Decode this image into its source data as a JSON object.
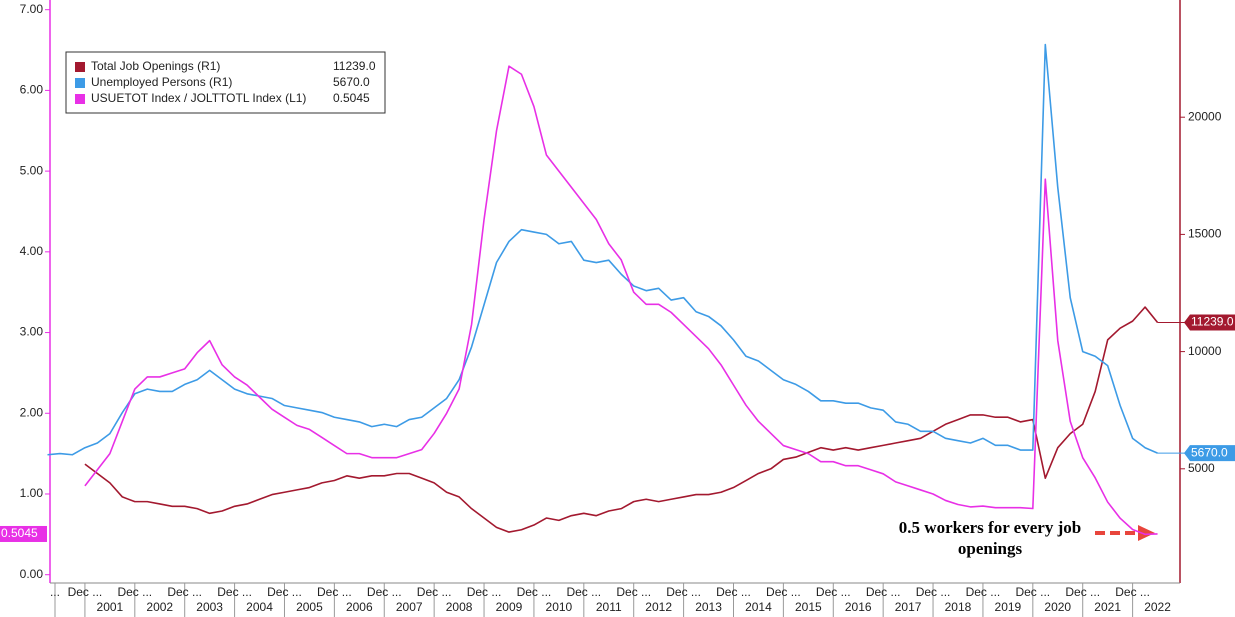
{
  "chart_data": {
    "type": "line",
    "legend": "top-left",
    "annotation": [
      "0.5 workers for every job",
      "openings"
    ],
    "xlim": [
      2000.3,
      2022.95
    ],
    "xticks": [
      {
        "value": 2000.4,
        "label": "..."
      },
      {
        "value": 2001,
        "label": "Dec ..."
      },
      {
        "value": 2002,
        "label": "Dec ..."
      },
      {
        "value": 2003,
        "label": "Dec ..."
      },
      {
        "value": 2004,
        "label": "Dec ..."
      },
      {
        "value": 2005,
        "label": "Dec ..."
      },
      {
        "value": 2006,
        "label": "Dec ..."
      },
      {
        "value": 2007,
        "label": "Dec ..."
      },
      {
        "value": 2008,
        "label": "Dec ..."
      },
      {
        "value": 2009,
        "label": "Dec ..."
      },
      {
        "value": 2010,
        "label": "Dec ..."
      },
      {
        "value": 2011,
        "label": "Dec ..."
      },
      {
        "value": 2012,
        "label": "Dec ..."
      },
      {
        "value": 2013,
        "label": "Dec ..."
      },
      {
        "value": 2014,
        "label": "Dec ..."
      },
      {
        "value": 2015,
        "label": "Dec ..."
      },
      {
        "value": 2016,
        "label": "Dec ..."
      },
      {
        "value": 2017,
        "label": "Dec ..."
      },
      {
        "value": 2018,
        "label": "Dec ..."
      },
      {
        "value": 2019,
        "label": "Dec ..."
      },
      {
        "value": 2020,
        "label": "Dec ..."
      },
      {
        "value": 2021,
        "label": "Dec ..."
      },
      {
        "value": 2022,
        "label": "Dec ..."
      }
    ],
    "year_labels": [
      {
        "value": 2001.5,
        "label": "2001"
      },
      {
        "value": 2002.5,
        "label": "2002"
      },
      {
        "value": 2003.5,
        "label": "2003"
      },
      {
        "value": 2004.5,
        "label": "2004"
      },
      {
        "value": 2005.5,
        "label": "2005"
      },
      {
        "value": 2006.5,
        "label": "2006"
      },
      {
        "value": 2007.5,
        "label": "2007"
      },
      {
        "value": 2008.5,
        "label": "2008"
      },
      {
        "value": 2009.5,
        "label": "2009"
      },
      {
        "value": 2010.5,
        "label": "2010"
      },
      {
        "value": 2011.5,
        "label": "2011"
      },
      {
        "value": 2012.5,
        "label": "2012"
      },
      {
        "value": 2013.5,
        "label": "2013"
      },
      {
        "value": 2014.5,
        "label": "2014"
      },
      {
        "value": 2015.5,
        "label": "2015"
      },
      {
        "value": 2016.5,
        "label": "2016"
      },
      {
        "value": 2017.5,
        "label": "2017"
      },
      {
        "value": 2018.5,
        "label": "2018"
      },
      {
        "value": 2019.5,
        "label": "2019"
      },
      {
        "value": 2020.5,
        "label": "2020"
      },
      {
        "value": 2021.5,
        "label": "2021"
      },
      {
        "value": 2022.5,
        "label": "2022"
      }
    ],
    "ylim": [
      -0.14,
      7.12
    ],
    "yticks": [
      {
        "value": 0,
        "label": "0.00"
      },
      {
        "value": 1,
        "label": "1.00"
      },
      {
        "value": 2,
        "label": "2.00"
      },
      {
        "value": 3,
        "label": "3.00"
      },
      {
        "value": 4,
        "label": "4.00"
      },
      {
        "value": 5,
        "label": "5.00"
      },
      {
        "value": 6,
        "label": "6.00"
      },
      {
        "value": 7,
        "label": "7.00"
      }
    ],
    "y2lim": [
      0,
      25000
    ],
    "y2ticks": [
      5000,
      10000,
      15000,
      20000
    ],
    "x": [
      2000.25,
      2000.5,
      2000.75,
      2001,
      2001.25,
      2001.5,
      2001.75,
      2002,
      2002.25,
      2002.5,
      2002.75,
      2003,
      2003.25,
      2003.5,
      2003.75,
      2004,
      2004.25,
      2004.5,
      2004.75,
      2005,
      2005.25,
      2005.5,
      2005.75,
      2006,
      2006.25,
      2006.5,
      2006.75,
      2007,
      2007.25,
      2007.5,
      2007.75,
      2008,
      2008.25,
      2008.5,
      2008.75,
      2009,
      2009.25,
      2009.5,
      2009.75,
      2010,
      2010.25,
      2010.5,
      2010.75,
      2011,
      2011.25,
      2011.5,
      2011.75,
      2012,
      2012.25,
      2012.5,
      2012.75,
      2013,
      2013.25,
      2013.5,
      2013.75,
      2014,
      2014.25,
      2014.5,
      2014.75,
      2015,
      2015.25,
      2015.5,
      2015.75,
      2016,
      2016.25,
      2016.5,
      2016.75,
      2017,
      2017.25,
      2017.5,
      2017.75,
      2018,
      2018.25,
      2018.5,
      2018.75,
      2019,
      2019.25,
      2019.5,
      2019.75,
      2020,
      2020.25,
      2020.5,
      2020.75,
      2021,
      2021.25,
      2021.5,
      2021.75,
      2022,
      2022.25,
      2022.5
    ],
    "series": [
      {
        "name": "Total Job Openings (R1)",
        "color": "#a3192f",
        "axis": "y2",
        "last_label": "11239.0",
        "values": [
          null,
          null,
          null,
          5200,
          4800,
          4400,
          3800,
          3600,
          3600,
          3500,
          3400,
          3400,
          3300,
          3100,
          3200,
          3400,
          3500,
          3700,
          3900,
          4000,
          4100,
          4200,
          4400,
          4500,
          4700,
          4600,
          4700,
          4700,
          4800,
          4800,
          4600,
          4400,
          4000,
          3800,
          3300,
          2900,
          2500,
          2300,
          2400,
          2600,
          2900,
          2800,
          3000,
          3100,
          3000,
          3200,
          3300,
          3600,
          3700,
          3600,
          3700,
          3800,
          3900,
          3900,
          4000,
          4200,
          4500,
          4800,
          5000,
          5400,
          5500,
          5700,
          5900,
          5800,
          5900,
          5800,
          5900,
          6000,
          6100,
          6200,
          6300,
          6600,
          6900,
          7100,
          7300,
          7300,
          7200,
          7200,
          7000,
          7100,
          4600,
          5900,
          6500,
          6900,
          8300,
          10500,
          11000,
          11300,
          11900,
          11239
        ]
      },
      {
        "name": "Unemployed Persons (R1)",
        "color": "#3d9be6",
        "axis": "y2",
        "last_label": "5670.0",
        "values": [
          5600,
          5650,
          5600,
          5900,
          6100,
          6500,
          7400,
          8200,
          8400,
          8300,
          8300,
          8600,
          8800,
          9200,
          8800,
          8400,
          8200,
          8100,
          8000,
          7700,
          7600,
          7500,
          7400,
          7200,
          7100,
          7000,
          6800,
          6900,
          6800,
          7100,
          7200,
          7600,
          8000,
          8800,
          10200,
          12000,
          13800,
          14700,
          15200,
          15100,
          15000,
          14600,
          14700,
          13900,
          13800,
          13900,
          13300,
          12800,
          12600,
          12700,
          12200,
          12300,
          11700,
          11500,
          11100,
          10500,
          9800,
          9600,
          9200,
          8800,
          8600,
          8300,
          7900,
          7900,
          7800,
          7800,
          7600,
          7500,
          7000,
          6900,
          6600,
          6600,
          6300,
          6200,
          6100,
          6300,
          6000,
          6000,
          5800,
          5800,
          23100,
          17000,
          12300,
          10000,
          9800,
          9400,
          7700,
          6300,
          5900,
          5670
        ]
      },
      {
        "name": "USUETOT Index / JOLTTOTL Index (L1)",
        "color": "#e830e6",
        "axis": "y",
        "last_label": "0.5045",
        "values": [
          null,
          null,
          null,
          1.1,
          1.3,
          1.5,
          1.9,
          2.3,
          2.45,
          2.45,
          2.5,
          2.55,
          2.75,
          2.9,
          2.6,
          2.45,
          2.35,
          2.2,
          2.05,
          1.95,
          1.85,
          1.8,
          1.7,
          1.6,
          1.5,
          1.5,
          1.45,
          1.45,
          1.45,
          1.5,
          1.55,
          1.75,
          2.0,
          2.3,
          3.1,
          4.4,
          5.5,
          6.3,
          6.2,
          5.8,
          5.2,
          5.0,
          4.8,
          4.6,
          4.4,
          4.1,
          3.9,
          3.5,
          3.35,
          3.35,
          3.25,
          3.1,
          2.95,
          2.8,
          2.6,
          2.35,
          2.1,
          1.9,
          1.75,
          1.6,
          1.55,
          1.5,
          1.4,
          1.4,
          1.35,
          1.35,
          1.3,
          1.25,
          1.15,
          1.1,
          1.05,
          1.0,
          0.92,
          0.87,
          0.84,
          0.85,
          0.83,
          0.83,
          0.83,
          0.82,
          4.9,
          2.9,
          1.9,
          1.45,
          1.2,
          0.9,
          0.7,
          0.56,
          0.5,
          0.5045
        ]
      }
    ]
  }
}
